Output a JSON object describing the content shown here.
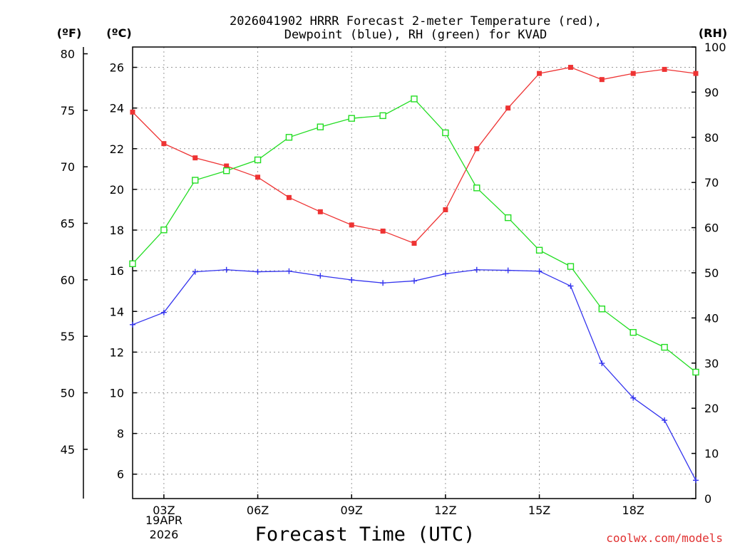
{
  "chart_data": {
    "type": "line",
    "title_line1": "2026041902 HRRR Forecast 2-meter Temperature (red),",
    "title_line2": "Dewpoint (blue), RH (green) for KVAD",
    "xlabel": "Forecast Time (UTC)",
    "unit_f": "(ºF)",
    "unit_c": "(ºC)",
    "unit_rh": "(RH)",
    "credit": "coolwx.com/models",
    "x_hours": [
      2,
      3,
      4,
      5,
      6,
      7,
      8,
      9,
      10,
      11,
      12,
      13,
      14,
      15,
      16,
      17,
      18,
      19,
      20
    ],
    "xlim": [
      2,
      20
    ],
    "x_ticks": [
      {
        "hour": 3,
        "label": "03Z"
      },
      {
        "hour": 6,
        "label": "06Z"
      },
      {
        "hour": 9,
        "label": "09Z"
      },
      {
        "hour": 12,
        "label": "12Z"
      },
      {
        "hour": 15,
        "label": "15Z"
      },
      {
        "hour": 18,
        "label": "18Z"
      }
    ],
    "date_label_1": "19APR",
    "date_label_2": "2026",
    "celsius_axis": {
      "ylim": [
        4.8,
        27.0
      ],
      "ticks": [
        6,
        8,
        10,
        12,
        14,
        16,
        18,
        20,
        22,
        24,
        26
      ]
    },
    "fahrenheit_axis": {
      "ticks": [
        45,
        50,
        55,
        60,
        65,
        70,
        75,
        80
      ]
    },
    "rh_axis": {
      "ylim": [
        0,
        100
      ],
      "ticks": [
        0,
        10,
        20,
        30,
        40,
        50,
        60,
        70,
        80,
        90,
        100
      ]
    },
    "series": [
      {
        "name": "Temperature",
        "units": "C",
        "color": "#ee3333",
        "marker": "filled-square",
        "values": [
          23.8,
          22.25,
          21.55,
          21.15,
          20.6,
          19.6,
          18.9,
          18.25,
          17.95,
          17.35,
          19.0,
          22.0,
          24.0,
          25.7,
          26.0,
          25.4,
          25.7,
          25.9,
          25.7
        ]
      },
      {
        "name": "Dewpoint",
        "units": "C",
        "color": "#3333ee",
        "marker": "plus",
        "values": [
          13.35,
          13.95,
          15.95,
          16.05,
          15.95,
          15.98,
          15.75,
          15.55,
          15.4,
          15.5,
          15.85,
          16.05,
          16.02,
          15.98,
          15.25,
          11.45,
          9.75,
          8.65,
          5.7
        ]
      },
      {
        "name": "RH",
        "units": "%",
        "color": "#22dd22",
        "marker": "open-square",
        "values": [
          52.0,
          59.5,
          70.5,
          72.6,
          75.0,
          80.0,
          82.3,
          84.2,
          84.8,
          88.5,
          81.0,
          68.8,
          62.2,
          55.0,
          51.4,
          42.0,
          36.8,
          33.5,
          28.0
        ]
      }
    ]
  }
}
